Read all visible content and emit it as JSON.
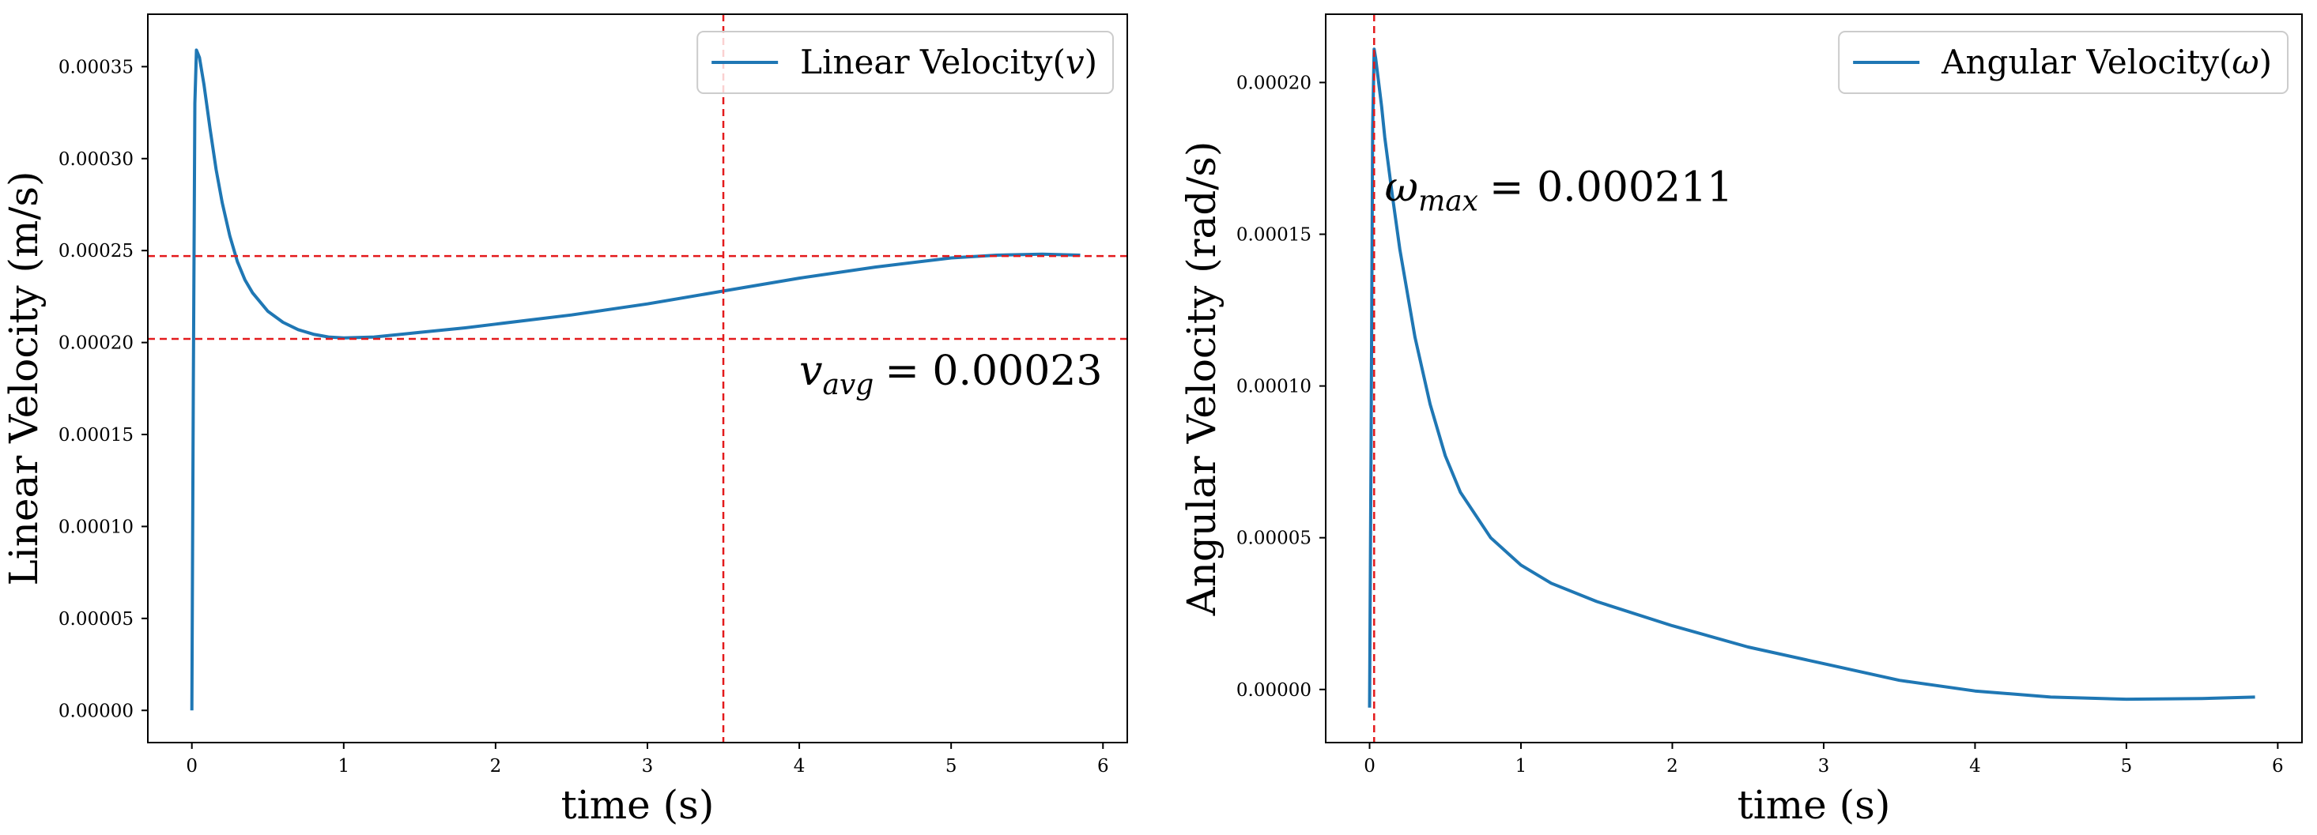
{
  "colors": {
    "series": "#1f77b4",
    "reference": "#e31a1c",
    "axes": "#000000",
    "background": "#ffffff"
  },
  "chart_data": [
    {
      "type": "line",
      "xlabel": "time (s)",
      "ylabel": "Linear Velocity (m/s)",
      "xlim": [
        -0.29,
        6.16
      ],
      "ylim": [
        -1.75e-05,
        0.0003785
      ],
      "xticks": [
        0,
        1,
        2,
        3,
        4,
        5,
        6
      ],
      "xtick_labels": [
        "0",
        "1",
        "2",
        "3",
        "4",
        "5",
        "6"
      ],
      "yticks": [
        0,
        5e-05,
        0.0001,
        0.00015,
        0.0002,
        0.00025,
        0.0003,
        0.00035
      ],
      "ytick_labels": [
        "0.00000",
        "0.00005",
        "0.00010",
        "0.00015",
        "0.00020",
        "0.00025",
        "0.00030",
        "0.00035"
      ],
      "grid": false,
      "legend_position": "top-right",
      "series": [
        {
          "name": "Linear Velocity(v)",
          "legend_main": "Linear Velocity(",
          "legend_var": "v",
          "legend_close": ")",
          "x": [
            0.0,
            0.01,
            0.02,
            0.03,
            0.05,
            0.08,
            0.12,
            0.16,
            0.2,
            0.25,
            0.3,
            0.35,
            0.4,
            0.5,
            0.6,
            0.7,
            0.8,
            0.9,
            1.0,
            1.2,
            1.5,
            1.8,
            2.0,
            2.5,
            3.0,
            3.5,
            4.0,
            4.5,
            5.0,
            5.3,
            5.6,
            5.85
          ],
          "y": [
            0.0,
            0.00018,
            0.00033,
            0.000359,
            0.000355,
            0.00034,
            0.000316,
            0.000294,
            0.000276,
            0.000258,
            0.000244,
            0.000234,
            0.000227,
            0.000217,
            0.000211,
            0.000207,
            0.0002045,
            0.000203,
            0.0002025,
            0.000203,
            0.0002055,
            0.000208,
            0.00021,
            0.000215,
            0.000221,
            0.000228,
            0.000235,
            0.000241,
            0.000246,
            0.0002475,
            0.000248,
            0.0002475
          ]
        }
      ],
      "reference_lines": {
        "horizontal": [
          0.000247,
          0.000202
        ],
        "vertical": [
          3.5
        ]
      },
      "annotation": {
        "var": "v",
        "sub": "avg",
        "value": "= 0.00023",
        "x": 4.0,
        "y": 0.000177
      }
    },
    {
      "type": "line",
      "xlabel": "time (s)",
      "ylabel": "Angular Velocity (rad/s)",
      "xlim": [
        -0.29,
        6.16
      ],
      "ylim": [
        -1.75e-05,
        0.0002225
      ],
      "xticks": [
        0,
        1,
        2,
        3,
        4,
        5,
        6
      ],
      "xtick_labels": [
        "0",
        "1",
        "2",
        "3",
        "4",
        "5",
        "6"
      ],
      "yticks": [
        0,
        5e-05,
        0.0001,
        0.00015,
        0.0002
      ],
      "ytick_labels": [
        "0.00000",
        "0.00005",
        "0.00010",
        "0.00015",
        "0.00020"
      ],
      "grid": false,
      "legend_position": "top-right",
      "series": [
        {
          "name": "Angular Velocity(ω)",
          "legend_main": "Angular Velocity(",
          "legend_var": "ω",
          "legend_close": ")",
          "x": [
            0.0,
            0.01,
            0.02,
            0.03,
            0.04,
            0.06,
            0.08,
            0.1,
            0.15,
            0.2,
            0.3,
            0.4,
            0.5,
            0.6,
            0.8,
            1.0,
            1.2,
            1.5,
            2.0,
            2.5,
            3.0,
            3.5,
            4.0,
            4.5,
            5.0,
            5.5,
            5.85
          ],
          "y": [
            -6e-06,
            8e-05,
            0.000185,
            0.000211,
            0.000208,
            0.0002,
            0.000192,
            0.000182,
            0.000163,
            0.000145,
            0.000116,
            9.4e-05,
            7.7e-05,
            6.5e-05,
            5e-05,
            4.1e-05,
            3.5e-05,
            2.9e-05,
            2.1e-05,
            1.4e-05,
            8.5e-06,
            3e-06,
            -5e-07,
            -2.5e-06,
            -3.2e-06,
            -3e-06,
            -2.5e-06
          ]
        }
      ],
      "reference_lines": {
        "horizontal": [],
        "vertical": [
          0.03
        ]
      },
      "annotation": {
        "var": "ω",
        "sub": "max",
        "value": "= 0.000211",
        "x": 0.1,
        "y": 0.000161
      }
    }
  ]
}
